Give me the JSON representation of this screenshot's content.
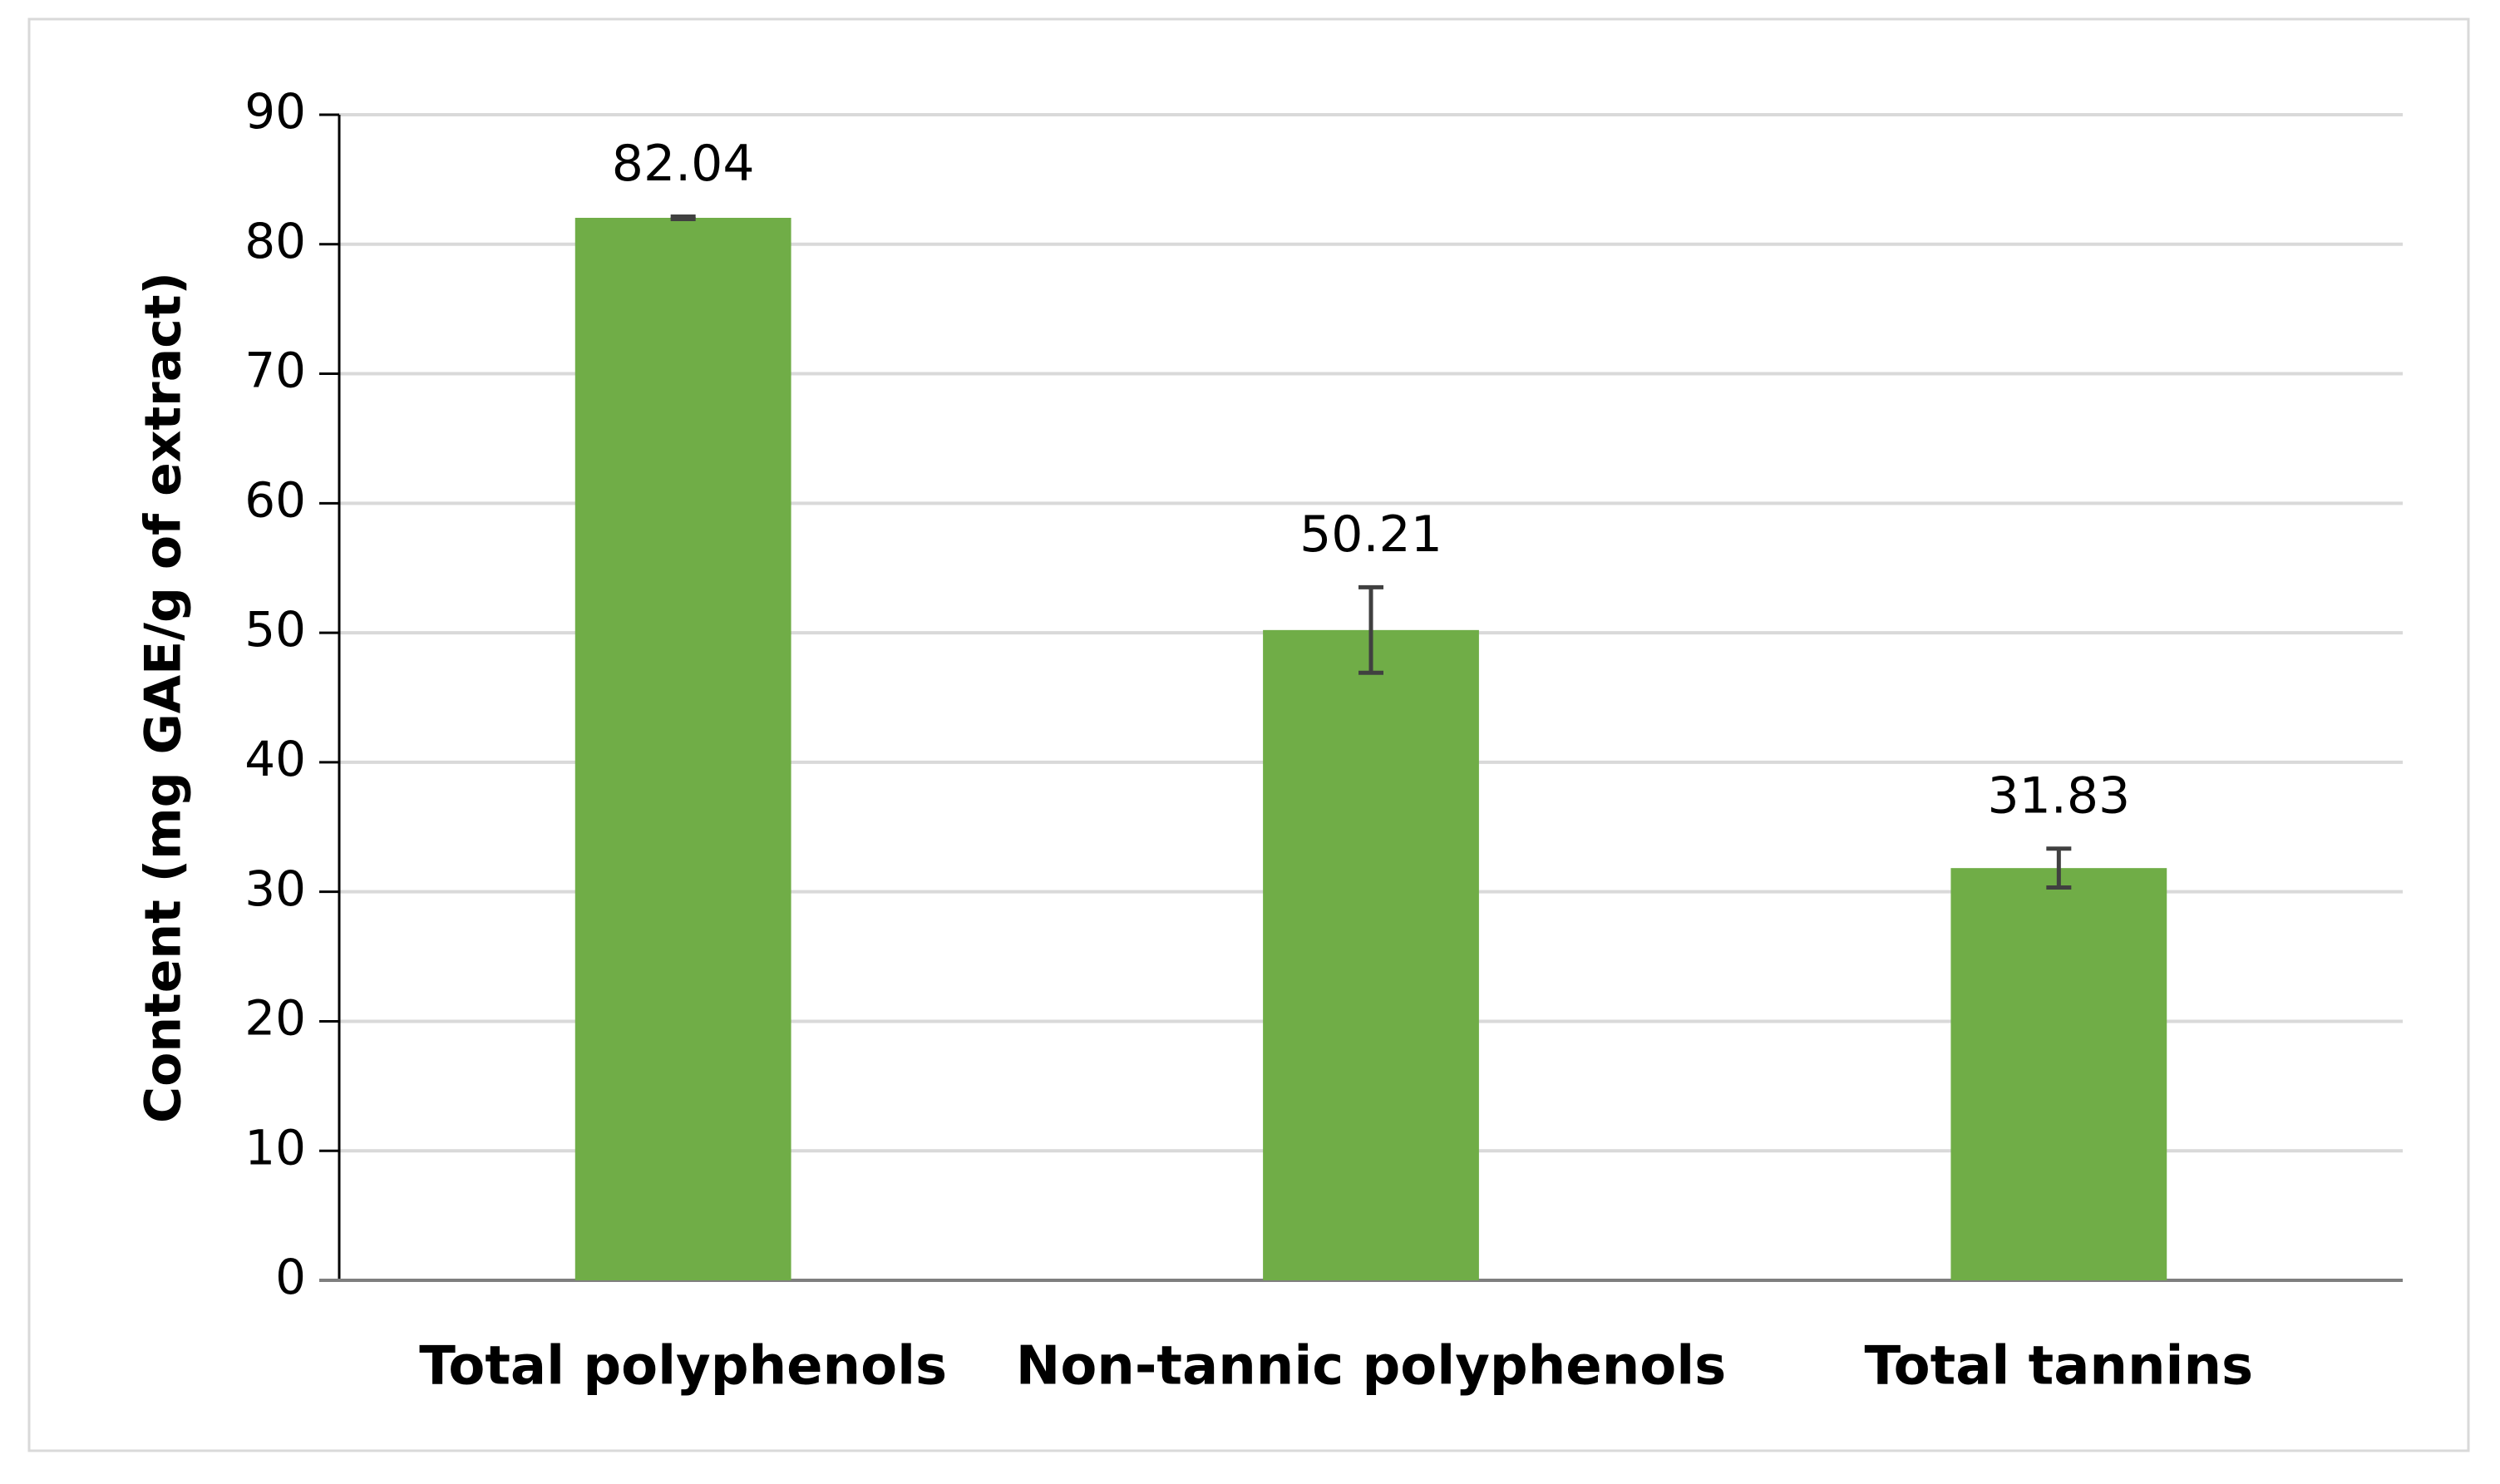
{
  "chart_data": {
    "type": "bar",
    "y_label": "Content (mg GAE/g of extract)",
    "categories": [
      "Total polyphenols",
      "Non-tannic polyphenols",
      "Total tannins"
    ],
    "values": [
      82.04,
      50.21,
      31.83
    ],
    "errors": [
      0.1,
      3.3,
      1.5
    ],
    "color": "#70ad47",
    "ylim": [
      0,
      90
    ],
    "yticks": [
      0,
      10,
      20,
      30,
      40,
      50,
      60,
      70,
      80,
      90
    ],
    "grid": true
  }
}
